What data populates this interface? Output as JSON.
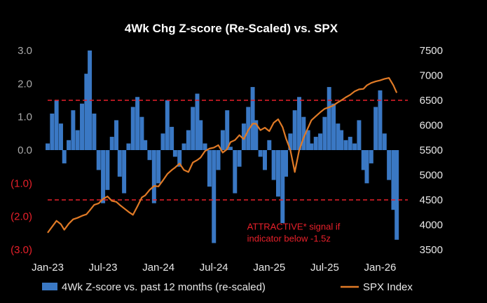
{
  "chart_data": {
    "type": "bar+line",
    "title": "4Wk Chg Z-score (Re-Scaled) vs. SPX",
    "x_tick_labels": [
      "Jan-23",
      "Jul-23",
      "Jan-24",
      "Jul-24",
      "Jan-25",
      "Jul-25",
      "Jan-26"
    ],
    "x_tick_positions": [
      2023.0,
      2023.5,
      2024.0,
      2024.5,
      2025.0,
      2025.5,
      2026.0
    ],
    "x_range": [
      2023.0,
      2026.25
    ],
    "y_left": {
      "ylim": [
        -3.0,
        3.0
      ],
      "ticks": [
        3.0,
        2.0,
        1.0,
        0.0,
        -1.0,
        -2.0,
        -3.0
      ],
      "tick_labels": [
        "3.0",
        "2.0",
        "1.0",
        "0.0",
        "(1.0)",
        "(2.0)",
        "(3.0)"
      ],
      "positive_color": "#aaaaaa",
      "negative_color": "#e8202a"
    },
    "y_right": {
      "ylim": [
        3500,
        7500
      ],
      "ticks": [
        7500,
        7000,
        6500,
        6000,
        5500,
        5000,
        4500,
        4000,
        3500
      ],
      "tick_labels": [
        "7500",
        "7000",
        "6500",
        "6000",
        "5500",
        "5000",
        "4500",
        "4000",
        "3500"
      ]
    },
    "threshold_lines": [
      1.5,
      -1.5
    ],
    "threshold_color": "#e8202a",
    "annotation": {
      "line1": "ATTRACTIVE* signal if",
      "line2": "indicator below -1.5z",
      "anchor": [
        2024.8,
        -2.4
      ]
    },
    "series": [
      {
        "name": "4Wk Z-score vs. past 12 months (re-scaled)",
        "type": "bar",
        "color": "#3a78c4",
        "x": [
          2023.0,
          2023.04,
          2023.08,
          2023.12,
          2023.15,
          2023.19,
          2023.23,
          2023.27,
          2023.31,
          2023.35,
          2023.38,
          2023.42,
          2023.46,
          2023.5,
          2023.54,
          2023.58,
          2023.62,
          2023.65,
          2023.69,
          2023.73,
          2023.77,
          2023.81,
          2023.85,
          2023.88,
          2023.92,
          2023.96,
          2024.0,
          2024.04,
          2024.08,
          2024.12,
          2024.15,
          2024.19,
          2024.23,
          2024.27,
          2024.31,
          2024.35,
          2024.38,
          2024.42,
          2024.46,
          2024.5,
          2024.54,
          2024.58,
          2024.62,
          2024.65,
          2024.69,
          2024.73,
          2024.77,
          2024.81,
          2024.85,
          2024.88,
          2024.92,
          2024.96,
          2025.0,
          2025.04,
          2025.08,
          2025.12,
          2025.15,
          2025.19,
          2025.23,
          2025.27,
          2025.31,
          2025.35,
          2025.38,
          2025.42,
          2025.46,
          2025.5,
          2025.54,
          2025.58,
          2025.62,
          2025.65,
          2025.69,
          2025.73,
          2025.77,
          2025.81,
          2025.85,
          2025.88,
          2025.92,
          2025.96,
          2026.0,
          2026.04,
          2026.08,
          2026.12,
          2026.15
        ],
        "values": [
          0.2,
          1.1,
          1.5,
          0.8,
          -0.4,
          0.3,
          1.2,
          0.6,
          1.4,
          2.3,
          3.0,
          1.1,
          -0.6,
          -1.6,
          -1.2,
          0.4,
          0.9,
          -0.8,
          -1.3,
          0.2,
          1.3,
          1.6,
          1.0,
          0.3,
          -0.3,
          -1.6,
          -1.0,
          0.5,
          1.5,
          0.7,
          -0.2,
          -0.5,
          0.2,
          0.6,
          1.3,
          1.7,
          0.9,
          0.2,
          -1.1,
          -2.8,
          -0.6,
          0.6,
          1.2,
          0.1,
          -1.3,
          -0.5,
          0.8,
          1.3,
          1.9,
          0.9,
          -0.2,
          -0.6,
          0.3,
          -0.9,
          -1.4,
          -2.2,
          -0.8,
          0.5,
          1.2,
          1.6,
          1.0,
          0.6,
          0.2,
          0.4,
          0.5,
          1.0,
          1.9,
          1.4,
          0.8,
          0.6,
          0.3,
          0.4,
          0.2,
          0.9,
          -0.6,
          -1.0,
          -0.4,
          1.3,
          1.8,
          0.5,
          -0.9,
          -1.8,
          -2.7
        ]
      },
      {
        "name": "SPX Index",
        "type": "line",
        "color": "#e07a26",
        "x": [
          2023.0,
          2023.04,
          2023.08,
          2023.12,
          2023.15,
          2023.19,
          2023.23,
          2023.27,
          2023.31,
          2023.35,
          2023.38,
          2023.42,
          2023.46,
          2023.5,
          2023.54,
          2023.58,
          2023.62,
          2023.65,
          2023.69,
          2023.73,
          2023.77,
          2023.81,
          2023.85,
          2023.88,
          2023.92,
          2023.96,
          2024.0,
          2024.04,
          2024.08,
          2024.12,
          2024.15,
          2024.19,
          2024.23,
          2024.27,
          2024.31,
          2024.35,
          2024.38,
          2024.42,
          2024.46,
          2024.5,
          2024.54,
          2024.58,
          2024.62,
          2024.65,
          2024.69,
          2024.73,
          2024.77,
          2024.81,
          2024.85,
          2024.88,
          2024.92,
          2024.96,
          2025.0,
          2025.04,
          2025.08,
          2025.12,
          2025.15,
          2025.19,
          2025.23,
          2025.27,
          2025.31,
          2025.35,
          2025.38,
          2025.42,
          2025.46,
          2025.5,
          2025.54,
          2025.58,
          2025.62,
          2025.65,
          2025.69,
          2025.73,
          2025.77,
          2025.81,
          2025.85,
          2025.88,
          2025.92,
          2025.96,
          2026.0,
          2026.04,
          2026.08,
          2026.12,
          2026.15
        ],
        "values": [
          3840,
          3960,
          4080,
          4010,
          3900,
          4020,
          4110,
          4140,
          4180,
          4210,
          4290,
          4400,
          4430,
          4520,
          4570,
          4480,
          4460,
          4400,
          4330,
          4260,
          4200,
          4370,
          4550,
          4590,
          4700,
          4780,
          4770,
          4890,
          5020,
          5100,
          5150,
          5230,
          5100,
          5060,
          5250,
          5300,
          5350,
          5480,
          5530,
          5550,
          5600,
          5450,
          5520,
          5660,
          5700,
          5800,
          5720,
          5900,
          6030,
          6030,
          5900,
          5950,
          5880,
          6050,
          6120,
          5960,
          5740,
          5500,
          5060,
          5500,
          5750,
          5950,
          6100,
          6180,
          6260,
          6330,
          6360,
          6400,
          6460,
          6500,
          6560,
          6610,
          6680,
          6720,
          6730,
          6800,
          6850,
          6880,
          6900,
          6930,
          6950,
          6800,
          6650
        ]
      }
    ],
    "legend": {
      "placement": "bottom",
      "items": [
        {
          "label": "4Wk Z-score vs. past 12 months (re-scaled)",
          "kind": "bar",
          "color": "#3a78c4"
        },
        {
          "label": "SPX Index",
          "kind": "line",
          "color": "#e07a26"
        }
      ]
    }
  }
}
